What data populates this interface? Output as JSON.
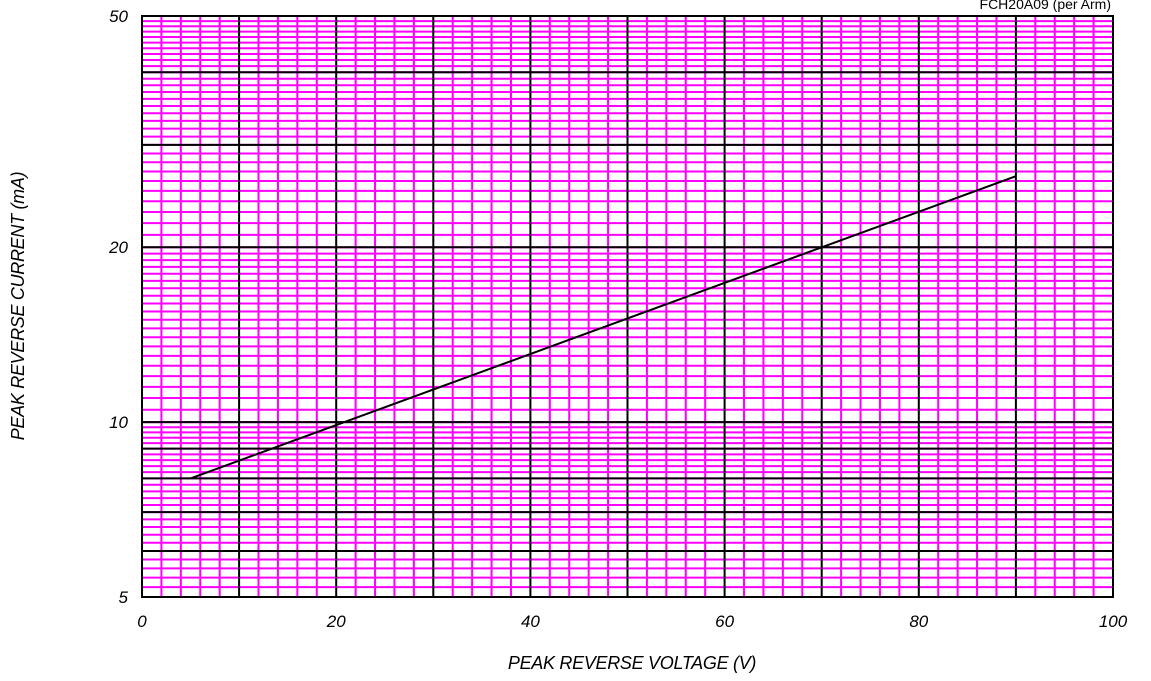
{
  "chart_data": {
    "type": "line",
    "xlabel": "PEAK REVERSE VOLTAGE (V)",
    "ylabel": "PEAK REVERSE CURRENT (mA)",
    "x_scale": "linear",
    "y_scale": "log",
    "xlim": [
      0,
      100
    ],
    "ylim": [
      5,
      50
    ],
    "x_ticks": [
      0,
      20,
      40,
      60,
      80,
      100
    ],
    "y_ticks": [
      5,
      10,
      20,
      50
    ],
    "grid": true,
    "legend": "none",
    "colors": {
      "minor_grid": "#ff00ff",
      "major_grid": "#000000",
      "series": "#000000"
    },
    "series": [
      {
        "name": "FCH20A09 (per Arm)",
        "x": [
          5,
          90
        ],
        "y": [
          8.0,
          26.5
        ]
      }
    ]
  }
}
